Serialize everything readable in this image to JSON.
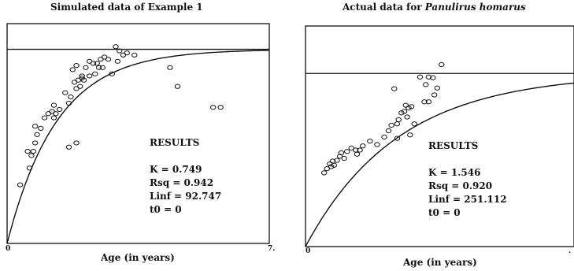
{
  "chart_data": [
    {
      "type": "scatter",
      "title_prefix": "Simulated data of Example 1",
      "title_italic": "",
      "xlabel": "Age (in years)",
      "x_ticks": [
        "0",
        "7."
      ],
      "xlim": [
        0,
        7
      ],
      "ylim": [
        0,
        105
      ],
      "asymptote": 92.747,
      "curve": {
        "K": 0.749,
        "t0": 0,
        "Linf": 92.747
      },
      "results": {
        "heading": "RESULTS",
        "k": "K = 0.749",
        "rsq": "Rsq = 0.942",
        "linf": "Linf = 92.747",
        "t0": "t0 = 0"
      },
      "points": [
        [
          0.35,
          28
        ],
        [
          0.6,
          36
        ],
        [
          0.55,
          44
        ],
        [
          0.75,
          48
        ],
        [
          0.7,
          44
        ],
        [
          0.65,
          42
        ],
        [
          0.8,
          52
        ],
        [
          0.9,
          55
        ],
        [
          0.75,
          56
        ],
        [
          1.0,
          60
        ],
        [
          1.1,
          62
        ],
        [
          1.2,
          63
        ],
        [
          1.25,
          60
        ],
        [
          1.3,
          62
        ],
        [
          1.25,
          66
        ],
        [
          1.4,
          64
        ],
        [
          1.55,
          72
        ],
        [
          1.65,
          67
        ],
        [
          1.7,
          70
        ],
        [
          1.8,
          77
        ],
        [
          1.75,
          83
        ],
        [
          1.9,
          78
        ],
        [
          2.0,
          79
        ],
        [
          2.1,
          84
        ],
        [
          2.2,
          87
        ],
        [
          2.3,
          86
        ],
        [
          2.4,
          86
        ],
        [
          2.5,
          88
        ],
        [
          2.6,
          89
        ],
        [
          2.7,
          88
        ],
        [
          2.55,
          84
        ],
        [
          2.45,
          84
        ],
        [
          2.35,
          81
        ],
        [
          2.2,
          80
        ],
        [
          2.05,
          78
        ],
        [
          1.95,
          75
        ],
        [
          1.85,
          74
        ],
        [
          1.65,
          46
        ],
        [
          1.85,
          48
        ],
        [
          2.9,
          94
        ],
        [
          3.4,
          90
        ],
        [
          3.1,
          90
        ],
        [
          3.0,
          92
        ],
        [
          2.95,
          87
        ],
        [
          3.2,
          91
        ],
        [
          2.0,
          80
        ],
        [
          1.85,
          85
        ],
        [
          2.8,
          81
        ],
        [
          4.35,
          84
        ],
        [
          4.55,
          75
        ],
        [
          5.5,
          65
        ],
        [
          5.7,
          65
        ]
      ]
    },
    {
      "type": "scatter",
      "title_prefix": "Actual data for ",
      "title_italic": "Panulirus homarus",
      "xlabel": "Age (in years)",
      "x_ticks": [
        "0",
        "."
      ],
      "xlim": [
        0,
        1.875
      ],
      "ylim": [
        0,
        320
      ],
      "asymptote": 251.112,
      "curve": {
        "K": 1.546,
        "t0": 0,
        "Linf": 251.112
      },
      "results": {
        "heading": "RESULTS",
        "k": "K = 1.546",
        "rsq": "Rsq = 0.920",
        "linf": "Linf = 251.112",
        "t0": "t0 = 0"
      },
      "points": [
        [
          0.13,
          107
        ],
        [
          0.15,
          113
        ],
        [
          0.17,
          120
        ],
        [
          0.18,
          116
        ],
        [
          0.19,
          124
        ],
        [
          0.2,
          118
        ],
        [
          0.22,
          125
        ],
        [
          0.24,
          131
        ],
        [
          0.25,
          136
        ],
        [
          0.27,
          128
        ],
        [
          0.29,
          138
        ],
        [
          0.32,
          143
        ],
        [
          0.35,
          140
        ],
        [
          0.38,
          140
        ],
        [
          0.4,
          146
        ],
        [
          0.45,
          153
        ],
        [
          0.5,
          148
        ],
        [
          0.55,
          159
        ],
        [
          0.58,
          168
        ],
        [
          0.6,
          176
        ],
        [
          0.64,
          178
        ],
        [
          0.65,
          184
        ],
        [
          0.67,
          194
        ],
        [
          0.69,
          196
        ],
        [
          0.71,
          188
        ],
        [
          0.7,
          205
        ],
        [
          0.72,
          201
        ],
        [
          0.74,
          203
        ],
        [
          0.76,
          178
        ],
        [
          0.83,
          210
        ],
        [
          0.86,
          210
        ],
        [
          0.84,
          235
        ],
        [
          0.86,
          246
        ],
        [
          0.89,
          245
        ],
        [
          0.9,
          220
        ],
        [
          0.92,
          230
        ],
        [
          0.95,
          264
        ],
        [
          0.8,
          246
        ],
        [
          0.62,
          229
        ],
        [
          0.73,
          162
        ],
        [
          0.64,
          157
        ],
        [
          0.36,
          134
        ]
      ]
    }
  ]
}
